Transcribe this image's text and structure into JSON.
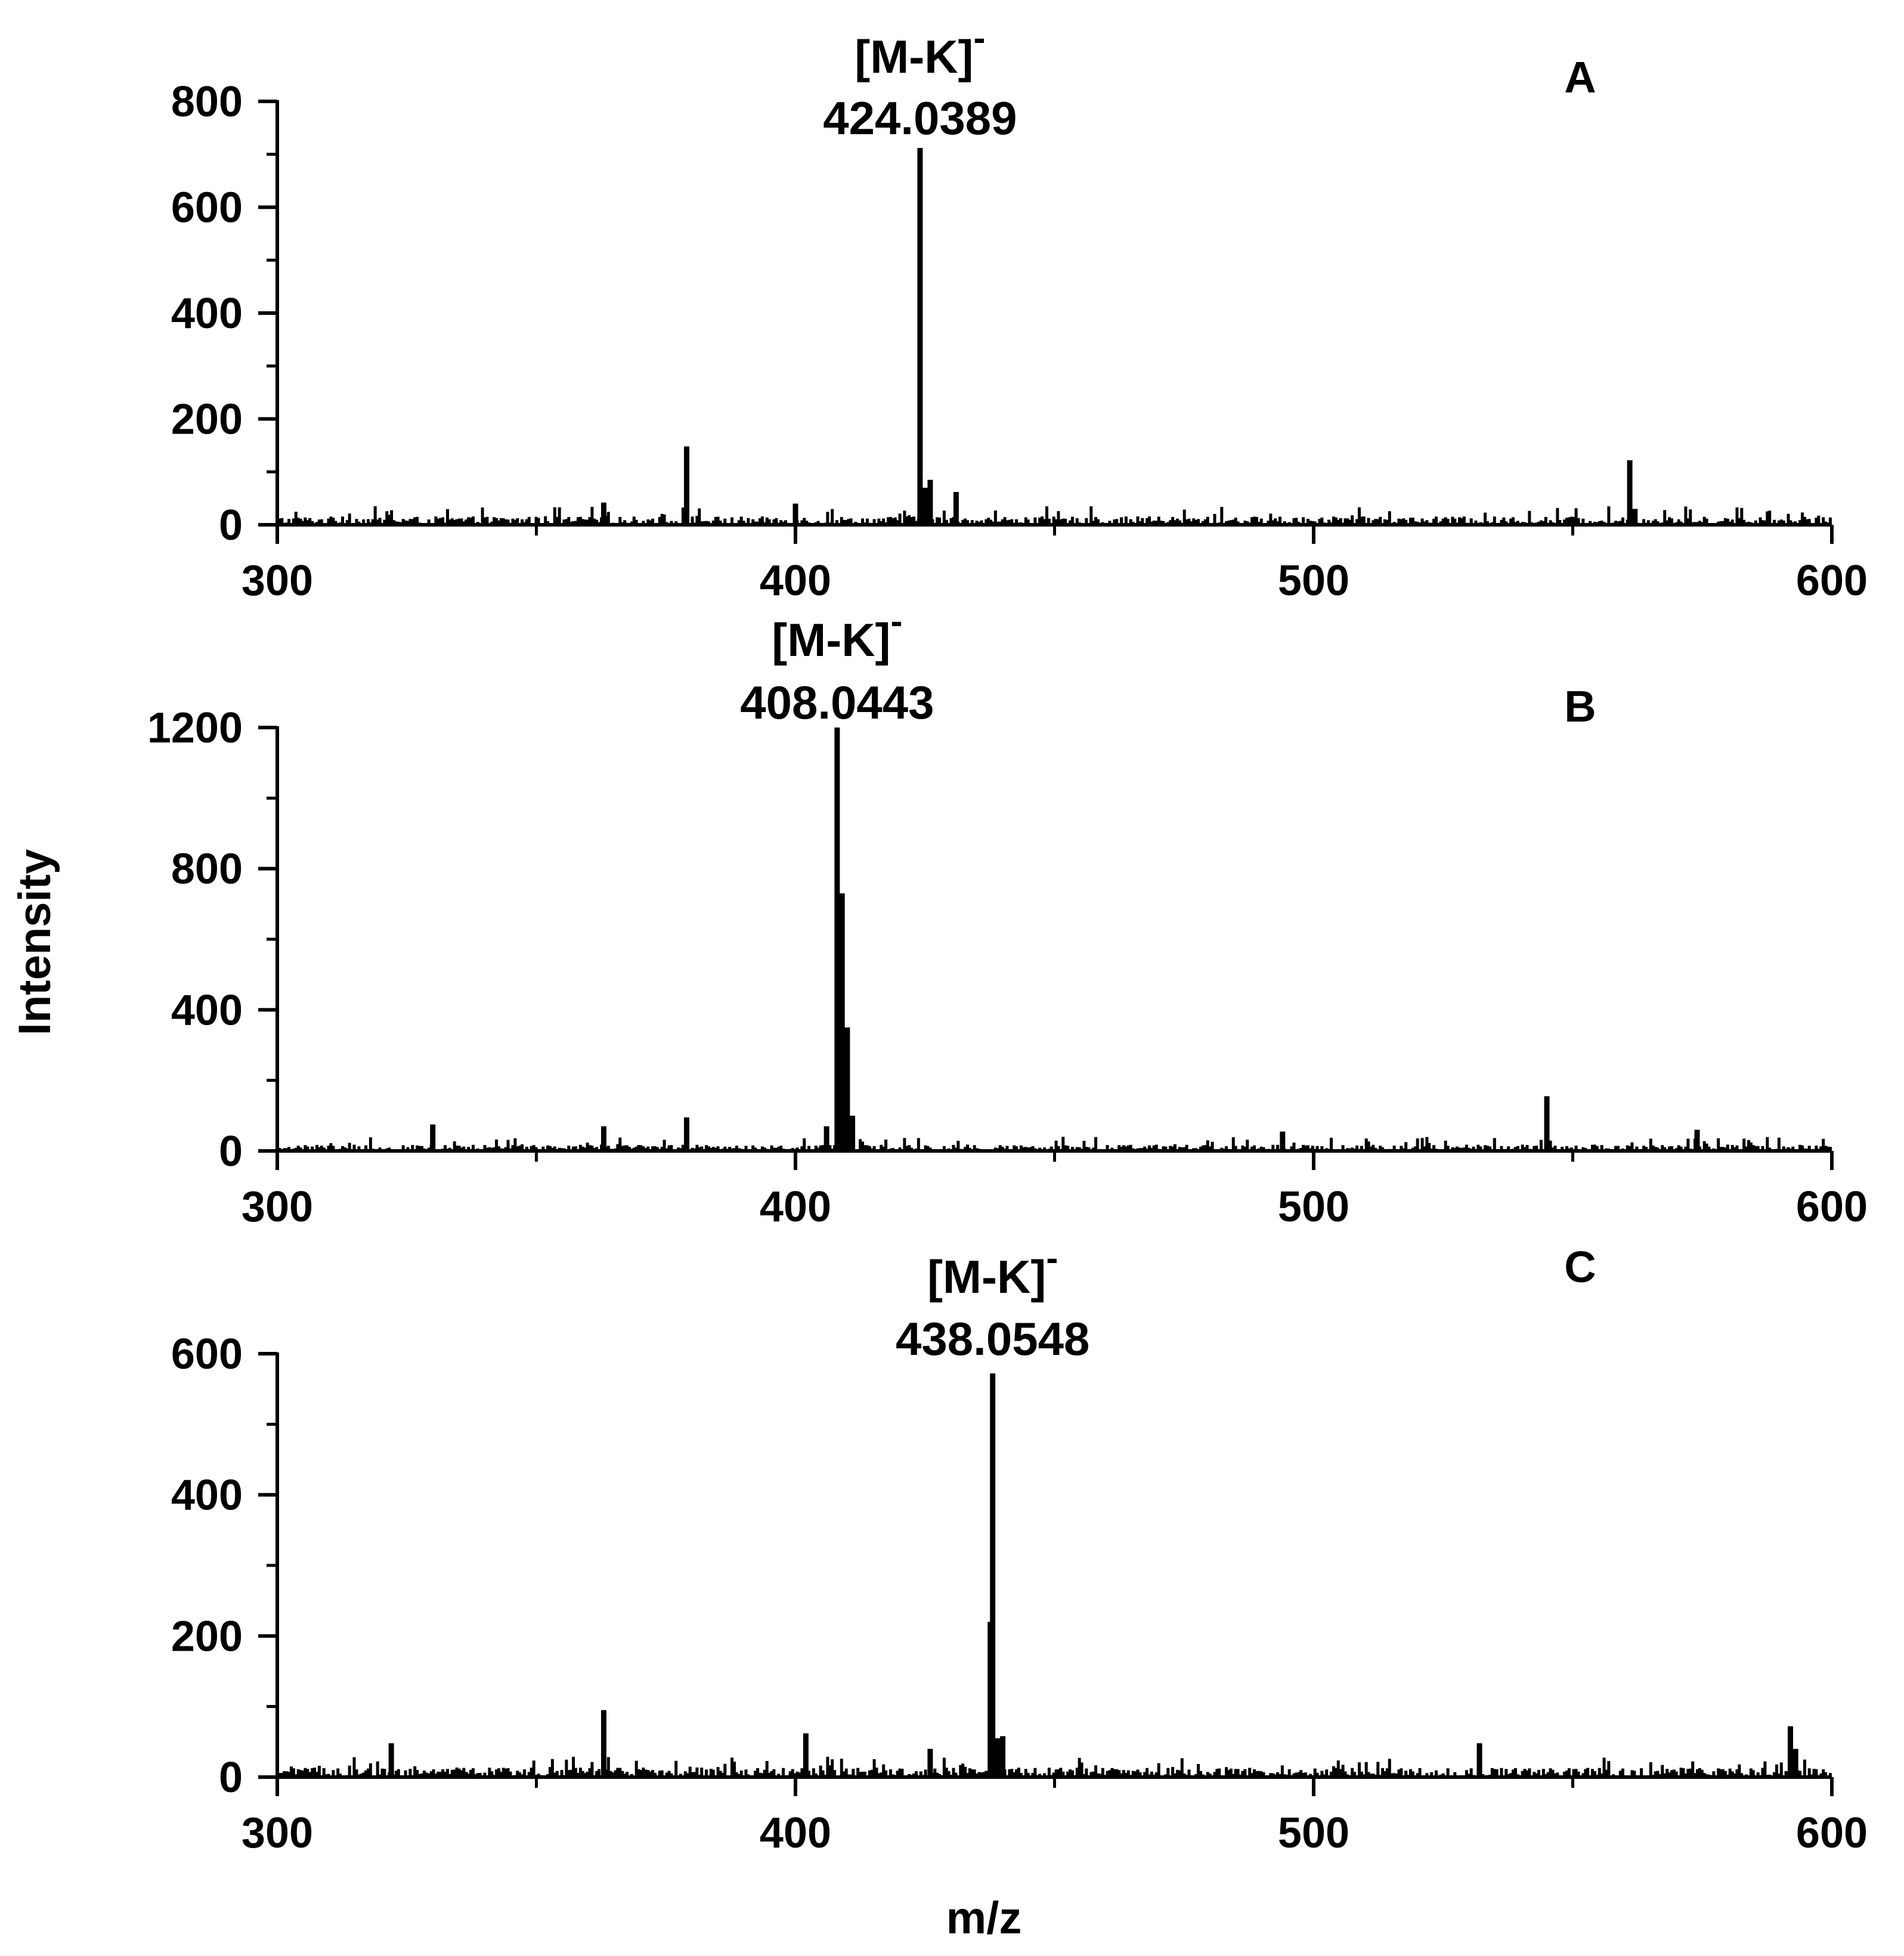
{
  "figure": {
    "ylabel": "Intensity",
    "xlabel": "m/z"
  },
  "chart_data": [
    {
      "type": "bar",
      "panel_label": "A",
      "xlim": [
        300,
        600
      ],
      "ylim": [
        0,
        800
      ],
      "x_ticks": [
        300,
        400,
        500,
        600
      ],
      "y_ticks": [
        0,
        200,
        400,
        600,
        800
      ],
      "annotation": {
        "ion": "[M-K]",
        "charge": "-",
        "mz": "424.0389",
        "x": 424.0389
      },
      "peaks": [
        {
          "x": 379,
          "y": 148
        },
        {
          "x": 424.0389,
          "y": 712
        },
        {
          "x": 425,
          "y": 70
        },
        {
          "x": 426,
          "y": 85
        },
        {
          "x": 431,
          "y": 62
        },
        {
          "x": 363,
          "y": 42
        },
        {
          "x": 400,
          "y": 40
        },
        {
          "x": 561,
          "y": 122
        },
        {
          "x": 562,
          "y": 30
        }
      ],
      "noise_level": 35
    },
    {
      "type": "bar",
      "panel_label": "B",
      "xlim": [
        300,
        600
      ],
      "ylim": [
        0,
        1200
      ],
      "x_ticks": [
        300,
        400,
        500,
        600
      ],
      "y_ticks": [
        0,
        400,
        800,
        1200
      ],
      "annotation": {
        "ion": "[M-K]",
        "charge": "-",
        "mz": "408.0443",
        "x": 408.0443
      },
      "peaks": [
        {
          "x": 408.0443,
          "y": 1200
        },
        {
          "x": 409,
          "y": 730
        },
        {
          "x": 410,
          "y": 350
        },
        {
          "x": 411,
          "y": 100
        },
        {
          "x": 406,
          "y": 70
        },
        {
          "x": 330,
          "y": 75
        },
        {
          "x": 363,
          "y": 70
        },
        {
          "x": 379,
          "y": 95
        },
        {
          "x": 494,
          "y": 55
        },
        {
          "x": 545,
          "y": 155
        },
        {
          "x": 574,
          "y": 60
        }
      ],
      "noise_level": 40
    },
    {
      "type": "bar",
      "panel_label": "C",
      "xlim": [
        300,
        600
      ],
      "ylim": [
        0,
        600
      ],
      "x_ticks": [
        300,
        400,
        500,
        600
      ],
      "y_ticks": [
        0,
        200,
        400,
        600
      ],
      "annotation": {
        "ion": "[M-K]",
        "charge": "-",
        "mz": "438.0548",
        "x": 438.0548
      },
      "peaks": [
        {
          "x": 438.0548,
          "y": 572
        },
        {
          "x": 437.6,
          "y": 220
        },
        {
          "x": 439,
          "y": 55
        },
        {
          "x": 440,
          "y": 58
        },
        {
          "x": 363,
          "y": 95
        },
        {
          "x": 402,
          "y": 62
        },
        {
          "x": 322,
          "y": 48
        },
        {
          "x": 426,
          "y": 40
        },
        {
          "x": 532,
          "y": 48
        },
        {
          "x": 592,
          "y": 72
        },
        {
          "x": 593,
          "y": 40
        }
      ],
      "noise_level": 30
    }
  ]
}
